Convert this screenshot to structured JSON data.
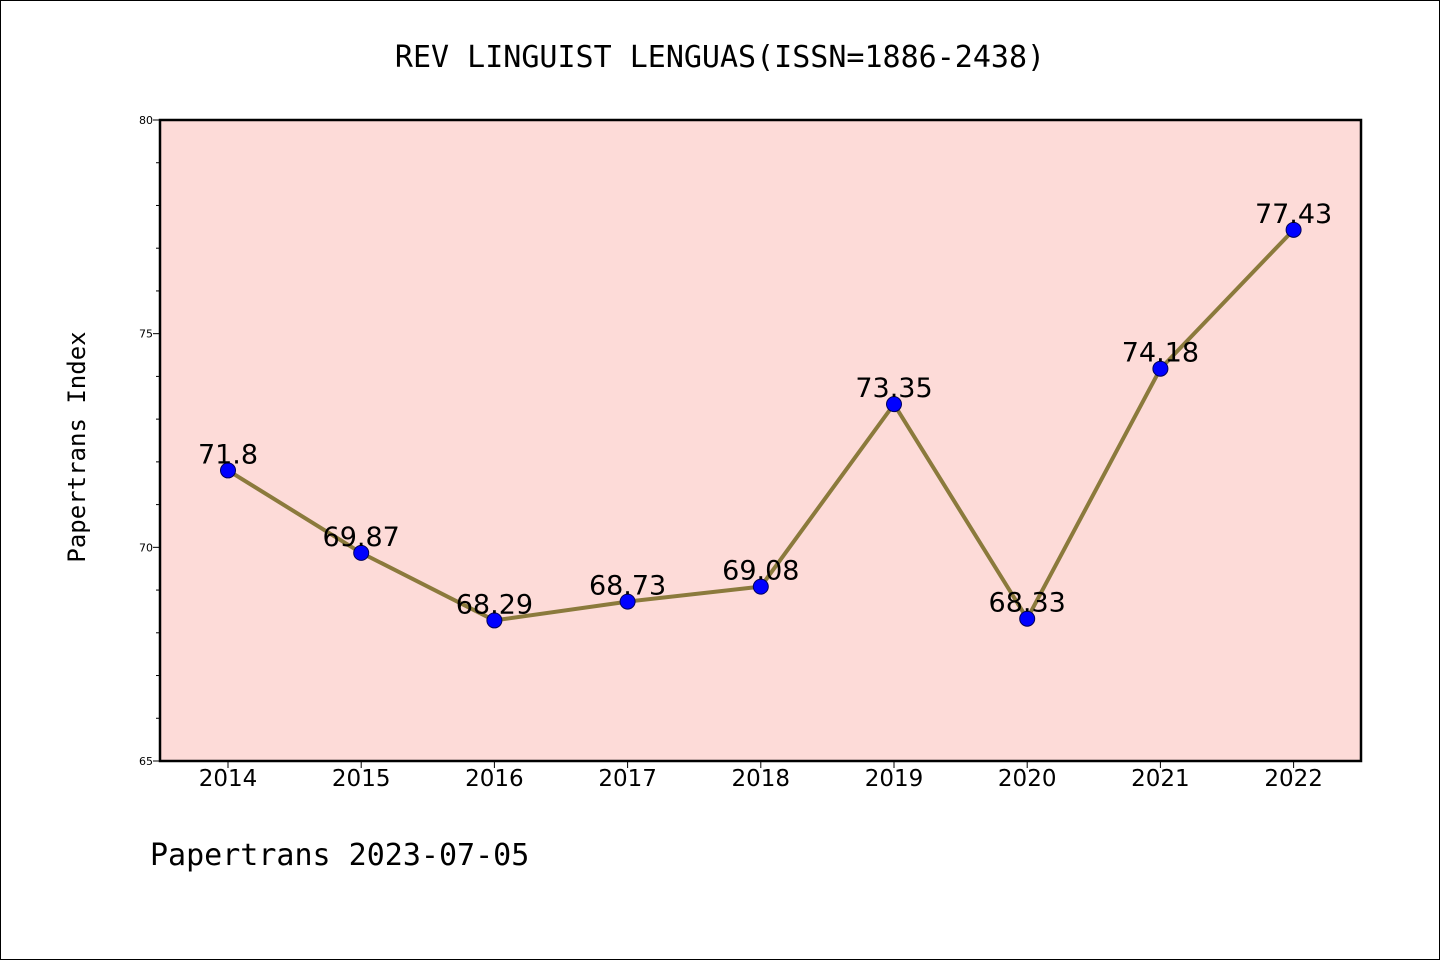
{
  "chart_data": {
    "type": "line",
    "title": "REV LINGUIST LENGUAS(ISSN=1886-2438)",
    "xlabel": "",
    "ylabel": "Papertrans Index",
    "footer": "Papertrans 2023-07-05",
    "x": [
      "2014",
      "2015",
      "2016",
      "2017",
      "2018",
      "2019",
      "2020",
      "2021",
      "2022"
    ],
    "series": [
      {
        "values": [
          71.8,
          69.87,
          68.29,
          68.73,
          69.08,
          73.35,
          68.33,
          74.18,
          77.43
        ],
        "labels": [
          "71.8",
          "69.87",
          "68.29",
          "68.73",
          "69.08",
          "73.35",
          "68.33",
          "74.18",
          "77.43"
        ]
      }
    ],
    "ylim": [
      65,
      80
    ],
    "yticks": [
      65,
      70,
      75,
      80
    ],
    "ytick_labels": [
      "65",
      "70",
      "75",
      "80"
    ],
    "grid": false,
    "colors": {
      "plot_background": "#fddbd8",
      "line": "#8b7a3c",
      "marker": "#0000ff",
      "axis": "#000000"
    }
  }
}
